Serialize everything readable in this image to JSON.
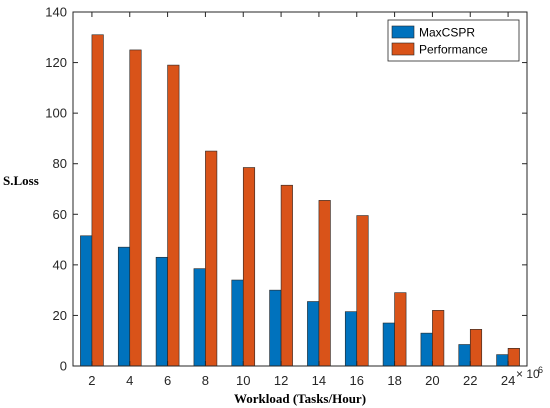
{
  "chart_data": {
    "type": "bar",
    "categories": [
      "2",
      "4",
      "6",
      "8",
      "10",
      "12",
      "14",
      "16",
      "18",
      "20",
      "22",
      "24"
    ],
    "x_multiplier": "× 10",
    "x_multiplier_exponent": "6",
    "series": [
      {
        "name": "MaxCSPR",
        "color": "#0072BD",
        "values": [
          51.5,
          47,
          43,
          38.5,
          34,
          30,
          25.5,
          21.5,
          17,
          13,
          8.5,
          4.5
        ]
      },
      {
        "name": "Performance",
        "color": "#D95319",
        "values": [
          131,
          125,
          119,
          85,
          78.5,
          71.5,
          65.5,
          59.5,
          29,
          22,
          14.5,
          7
        ]
      }
    ],
    "xlabel": "Workload (Tasks/Hour)",
    "ylabel": "S.Loss",
    "ylim": [
      0,
      140
    ],
    "yticks": [
      0,
      20,
      40,
      60,
      80,
      100,
      120,
      140
    ],
    "grid": false,
    "legend_position": "top-right"
  }
}
